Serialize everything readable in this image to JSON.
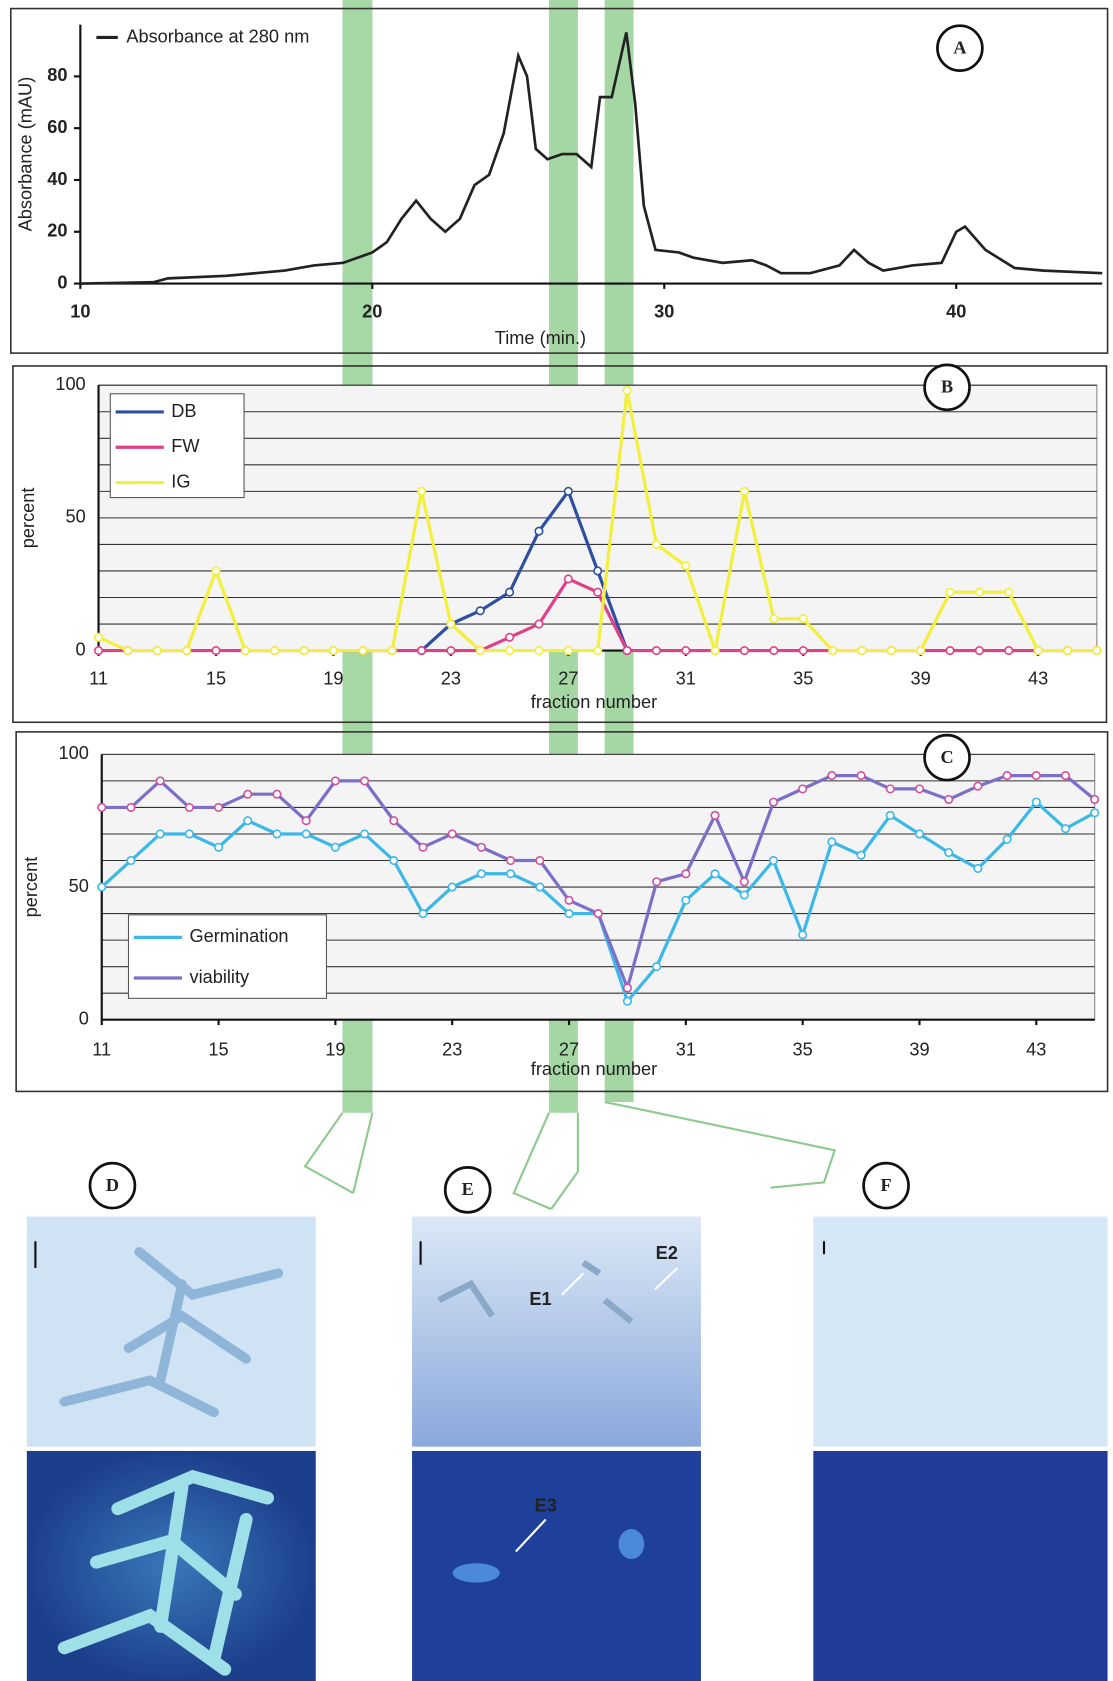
{
  "chart_data": [
    {
      "type": "line",
      "panel_label": "A",
      "xlabel": "Time (min.)",
      "ylabel": "Absorbance (mAU)",
      "x": [
        10,
        12.5,
        13,
        15,
        17,
        18,
        19,
        20,
        20.5,
        21,
        21.5,
        22,
        22.5,
        23,
        23.5,
        24,
        24.5,
        25,
        25.3,
        25.6,
        26,
        26.5,
        27,
        27.5,
        27.8,
        28.2,
        28.7,
        29,
        29.3,
        29.7,
        30.5,
        31,
        32,
        33,
        33.5,
        34,
        35,
        36,
        36.5,
        37,
        37.5,
        38.5,
        39.5,
        40,
        40.3,
        41,
        42,
        43,
        45
      ],
      "series": [
        {
          "name": "Absorbance at 280 nm",
          "color": "#222222",
          "values": [
            0,
            0.5,
            2,
            3,
            5,
            7,
            8,
            12,
            16,
            25,
            32,
            25,
            20,
            25,
            38,
            42,
            58,
            88,
            80,
            52,
            48,
            50,
            50,
            45,
            72,
            72,
            97,
            70,
            30,
            13,
            12,
            10,
            8,
            9,
            7,
            4,
            4,
            7,
            13,
            8,
            5,
            7,
            8,
            20,
            22,
            13,
            6,
            5,
            4
          ]
        }
      ],
      "xlim": [
        10,
        45
      ],
      "ylim": [
        0,
        100
      ],
      "xticks": [
        10,
        20,
        30,
        40
      ],
      "yticks": [
        0,
        20,
        40,
        60,
        80
      ],
      "grid": false,
      "markers": false,
      "legend": "upper left"
    },
    {
      "type": "line",
      "panel_label": "B",
      "xlabel": "fraction number",
      "ylabel": "percent",
      "x": [
        11,
        12,
        13,
        14,
        15,
        16,
        17,
        18,
        19,
        20,
        21,
        22,
        23,
        24,
        25,
        26,
        27,
        28,
        29,
        30,
        31,
        32,
        33,
        34,
        35,
        36,
        37,
        38,
        39,
        40,
        41,
        42,
        43,
        44,
        45
      ],
      "series": [
        {
          "name": "DB",
          "color": "#2e4fa0",
          "values": [
            null,
            null,
            null,
            null,
            null,
            null,
            null,
            null,
            null,
            null,
            null,
            0,
            10,
            15,
            22,
            45,
            60,
            30,
            0,
            null,
            null,
            null,
            null,
            null,
            null,
            null,
            null,
            null,
            null,
            null,
            null,
            null,
            null,
            null,
            null
          ]
        },
        {
          "name": "FW",
          "color": "#e0408a",
          "values": [
            0,
            0,
            0,
            0,
            0,
            0,
            0,
            0,
            0,
            0,
            0,
            0,
            0,
            0,
            5,
            10,
            27,
            22,
            0,
            0,
            0,
            0,
            0,
            0,
            0,
            0,
            0,
            0,
            0,
            0,
            0,
            0,
            0,
            0,
            0
          ]
        },
        {
          "name": "IG",
          "color": "#f2f03c",
          "values": [
            5,
            0,
            0,
            0,
            30,
            0,
            0,
            0,
            0,
            0,
            0,
            60,
            10,
            0,
            0,
            0,
            0,
            0,
            98,
            40,
            32,
            0,
            60,
            12,
            12,
            0,
            0,
            0,
            0,
            22,
            22,
            22,
            0,
            0,
            0
          ]
        }
      ],
      "xlim": [
        11,
        45
      ],
      "ylim": [
        0,
        100
      ],
      "xticks": [
        11,
        15,
        19,
        23,
        27,
        31,
        35,
        39,
        43
      ],
      "yticks": [
        0,
        50,
        100
      ],
      "minor_yticks": [
        10,
        20,
        30,
        40,
        60,
        70,
        80,
        90
      ],
      "grid": true,
      "markers": true,
      "legend": "upper left"
    },
    {
      "type": "line",
      "panel_label": "C",
      "xlabel": "fraction number",
      "ylabel": "percent",
      "x": [
        11,
        12,
        13,
        14,
        15,
        16,
        17,
        18,
        19,
        20,
        21,
        22,
        23,
        24,
        25,
        26,
        27,
        28,
        29,
        30,
        31,
        32,
        33,
        34,
        35,
        36,
        37,
        38,
        39,
        40,
        41,
        42,
        43,
        44,
        45
      ],
      "series": [
        {
          "name": "Germination",
          "color": "#3cb8e8",
          "values": [
            50,
            60,
            70,
            70,
            65,
            75,
            70,
            70,
            65,
            70,
            60,
            40,
            50,
            55,
            55,
            50,
            40,
            40,
            7,
            20,
            45,
            55,
            47,
            60,
            32,
            67,
            62,
            77,
            70,
            63,
            57,
            68,
            82,
            72,
            78
          ]
        },
        {
          "name": "viability",
          "color": "#7b6fc8",
          "values": [
            80,
            80,
            90,
            80,
            80,
            85,
            85,
            75,
            90,
            90,
            75,
            65,
            70,
            65,
            60,
            60,
            45,
            40,
            12,
            52,
            55,
            77,
            52,
            82,
            87,
            92,
            92,
            87,
            87,
            83,
            88,
            92,
            92,
            92,
            83
          ]
        }
      ],
      "xlim": [
        11,
        45
      ],
      "ylim": [
        0,
        100
      ],
      "xticks": [
        11,
        15,
        19,
        23,
        27,
        31,
        35,
        39,
        43
      ],
      "yticks": [
        0,
        50,
        100
      ],
      "minor_yticks": [
        10,
        20,
        30,
        40,
        60,
        70,
        80,
        90
      ],
      "grid": true,
      "markers": true,
      "legend": "lower left"
    }
  ],
  "image_panels": [
    {
      "label": "D"
    },
    {
      "label": "E",
      "annotations": [
        "E1",
        "E2",
        "E3"
      ]
    },
    {
      "label": "F"
    }
  ]
}
